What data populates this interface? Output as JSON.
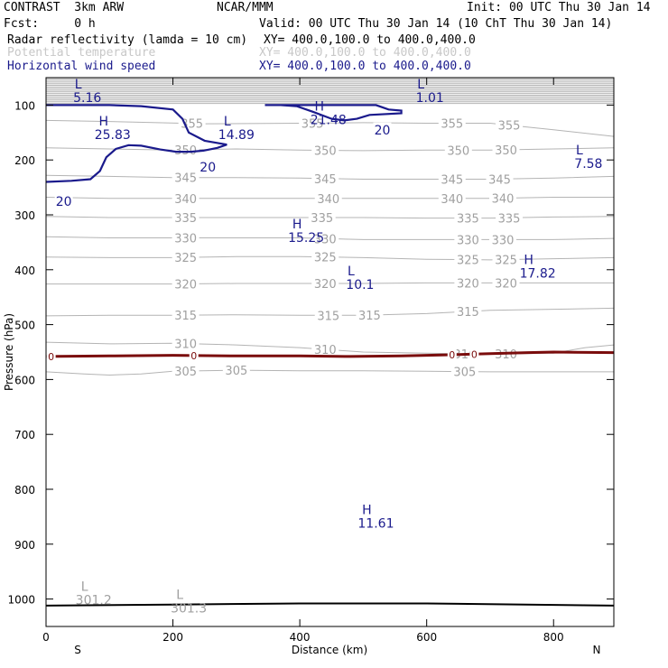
{
  "header": {
    "left1": "CONTRAST  3km ARW",
    "center1": "NCAR/MMM",
    "right1": "Init: 00 UTC Thu 30 Jan 14",
    "left2": "Fcst:     0 h",
    "right2": "Valid: 00 UTC Thu 30 Jan 14 (10 ChT Thu 30 Jan 14)",
    "fields": [
      {
        "name": "Radar reflectivity (lamda = 10 cm)",
        "xy": "XY= 400.0,100.0 to 400.0,400.0",
        "color": "#000000"
      },
      {
        "name": "Potential temperature",
        "xy": "XY= 400.0,100.0 to 400.0,400.0",
        "color": "#c8c8c8"
      },
      {
        "name": "Horizontal wind speed",
        "xy": "XY= 400.0,100.0 to 400.0,400.0",
        "color": "#1a1a8c"
      }
    ]
  },
  "chart_data": {
    "type": "line",
    "xlabel": "Distance (km)",
    "ylabel": "Pressure (hPa)",
    "xlim": [
      0,
      895
    ],
    "ylim": [
      1050,
      50
    ],
    "xticks": [
      0,
      200,
      400,
      600,
      800
    ],
    "yticks": [
      100,
      200,
      300,
      400,
      500,
      600,
      700,
      800,
      900,
      1000
    ],
    "end_labels": {
      "left": "S",
      "right": "N"
    },
    "colors": {
      "theta": "#b4b4b4",
      "theta_label": "#a0a0a0",
      "wind": "#1a1a8c",
      "refl": "#7a0c0c",
      "ground": "#000000"
    },
    "theta_contours": [
      {
        "level": 355,
        "points": [
          [
            0,
            128
          ],
          [
            100,
            130
          ],
          [
            250,
            134
          ],
          [
            400,
            133
          ],
          [
            500,
            132
          ],
          [
            600,
            133
          ],
          [
            700,
            133
          ],
          [
            800,
            145
          ],
          [
            895,
            157
          ]
        ],
        "label_x": [
          230,
          420,
          640,
          730
        ]
      },
      {
        "level": 350,
        "points": [
          [
            0,
            178
          ],
          [
            100,
            180
          ],
          [
            200,
            182
          ],
          [
            300,
            180
          ],
          [
            400,
            182
          ],
          [
            500,
            183
          ],
          [
            600,
            182
          ],
          [
            700,
            182
          ],
          [
            800,
            180
          ],
          [
            895,
            178
          ]
        ],
        "label_x": [
          220,
          440,
          650,
          725
        ]
      },
      {
        "level": 345,
        "points": [
          [
            0,
            228
          ],
          [
            100,
            230
          ],
          [
            200,
            232
          ],
          [
            300,
            232
          ],
          [
            400,
            233
          ],
          [
            500,
            235
          ],
          [
            600,
            235
          ],
          [
            700,
            235
          ],
          [
            800,
            233
          ],
          [
            895,
            230
          ]
        ],
        "label_x": [
          220,
          440,
          640,
          715
        ]
      },
      {
        "level": 340,
        "points": [
          [
            0,
            268
          ],
          [
            100,
            270
          ],
          [
            200,
            270
          ],
          [
            300,
            270
          ],
          [
            400,
            270
          ],
          [
            500,
            270
          ],
          [
            600,
            270
          ],
          [
            700,
            270
          ],
          [
            800,
            268
          ],
          [
            895,
            268
          ]
        ],
        "label_x": [
          220,
          445,
          640,
          720
        ]
      },
      {
        "level": 335,
        "points": [
          [
            0,
            303
          ],
          [
            100,
            305
          ],
          [
            200,
            305
          ],
          [
            300,
            305
          ],
          [
            400,
            305
          ],
          [
            500,
            305
          ],
          [
            600,
            306
          ],
          [
            700,
            306
          ],
          [
            800,
            304
          ],
          [
            895,
            303
          ]
        ],
        "label_x": [
          220,
          435,
          665,
          730
        ]
      },
      {
        "level": 330,
        "points": [
          [
            0,
            340
          ],
          [
            100,
            342
          ],
          [
            200,
            342
          ],
          [
            300,
            342
          ],
          [
            400,
            342
          ],
          [
            500,
            345
          ],
          [
            600,
            345
          ],
          [
            700,
            345
          ],
          [
            800,
            345
          ],
          [
            895,
            343
          ]
        ],
        "label_x": [
          220,
          440,
          665,
          720
        ]
      },
      {
        "level": 325,
        "points": [
          [
            0,
            377
          ],
          [
            100,
            378
          ],
          [
            200,
            378
          ],
          [
            300,
            376
          ],
          [
            400,
            376
          ],
          [
            500,
            378
          ],
          [
            600,
            381
          ],
          [
            700,
            382
          ],
          [
            800,
            380
          ],
          [
            895,
            378
          ]
        ],
        "label_x": [
          220,
          440,
          665,
          725
        ]
      },
      {
        "level": 320,
        "points": [
          [
            0,
            426
          ],
          [
            100,
            426
          ],
          [
            200,
            426
          ],
          [
            300,
            425
          ],
          [
            400,
            425
          ],
          [
            500,
            425
          ],
          [
            600,
            424
          ],
          [
            700,
            424
          ],
          [
            800,
            424
          ],
          [
            895,
            424
          ]
        ],
        "label_x": [
          220,
          440,
          665,
          725
        ]
      },
      {
        "level": 315,
        "points": [
          [
            0,
            484
          ],
          [
            100,
            483
          ],
          [
            200,
            483
          ],
          [
            300,
            482
          ],
          [
            400,
            483
          ],
          [
            500,
            483
          ],
          [
            600,
            480
          ],
          [
            700,
            474
          ],
          [
            800,
            472
          ],
          [
            895,
            470
          ]
        ],
        "label_x": [
          220,
          445,
          510,
          665
        ]
      },
      {
        "level": 310,
        "points": [
          [
            0,
            532
          ],
          [
            100,
            535
          ],
          [
            200,
            534
          ],
          [
            300,
            537
          ],
          [
            400,
            542
          ],
          [
            500,
            550
          ],
          [
            600,
            552
          ],
          [
            700,
            554
          ],
          [
            800,
            552
          ],
          [
            850,
            542
          ],
          [
            895,
            537
          ]
        ],
        "label_x": [
          220,
          440,
          660,
          725
        ]
      },
      {
        "level": 305,
        "points": [
          [
            0,
            586
          ],
          [
            60,
            590
          ],
          [
            100,
            592
          ],
          [
            150,
            590
          ],
          [
            200,
            585
          ],
          [
            300,
            583
          ],
          [
            400,
            584
          ],
          [
            500,
            584
          ],
          [
            600,
            585
          ],
          [
            700,
            586
          ],
          [
            800,
            586
          ],
          [
            895,
            586
          ]
        ],
        "label_x": [
          220,
          300,
          660
        ]
      }
    ],
    "theta_minmax": [
      {
        "kind": "L",
        "x": 75,
        "p": 985,
        "value": "301.2"
      },
      {
        "kind": "L",
        "x": 225,
        "p": 1000,
        "value": "301.3"
      }
    ],
    "wind_contours": [
      {
        "level": 20,
        "points": [
          [
            0,
            100
          ],
          [
            40,
            100
          ],
          [
            100,
            100
          ],
          [
            150,
            102
          ],
          [
            200,
            108
          ],
          [
            215,
            125
          ],
          [
            225,
            150
          ],
          [
            250,
            165
          ],
          [
            285,
            172
          ],
          [
            270,
            178
          ],
          [
            248,
            183
          ],
          [
            228,
            185
          ],
          [
            205,
            185
          ],
          [
            180,
            181
          ],
          [
            150,
            174
          ],
          [
            130,
            173
          ],
          [
            110,
            180
          ],
          [
            95,
            195
          ],
          [
            85,
            220
          ],
          [
            70,
            235
          ],
          [
            40,
            238
          ],
          [
            0,
            240
          ]
        ],
        "labels": [
          {
            "x": 255,
            "p": 213
          },
          {
            "x": 28,
            "p": 275
          }
        ]
      },
      {
        "level": 20,
        "points": [
          [
            345,
            100
          ],
          [
            370,
            100
          ],
          [
            395,
            102
          ],
          [
            420,
            112
          ],
          [
            450,
            125
          ],
          [
            470,
            128
          ],
          [
            490,
            125
          ],
          [
            510,
            118
          ],
          [
            560,
            115
          ],
          [
            560,
            110
          ],
          [
            540,
            108
          ],
          [
            520,
            100
          ],
          [
            500,
            100
          ],
          [
            460,
            100
          ],
          [
            420,
            100
          ],
          [
            395,
            100
          ],
          [
            370,
            100
          ],
          [
            345,
            100
          ]
        ],
        "labels": [
          {
            "x": 530,
            "p": 145
          }
        ]
      }
    ],
    "wind_minmax": [
      {
        "kind": "L",
        "x": 65,
        "p": 70,
        "value": "5.16"
      },
      {
        "kind": "H",
        "x": 105,
        "p": 137,
        "value": "25.83"
      },
      {
        "kind": "L",
        "x": 300,
        "p": 137,
        "value": "14.89"
      },
      {
        "kind": "H",
        "x": 445,
        "p": 110,
        "value": "21.48"
      },
      {
        "kind": "L",
        "x": 605,
        "p": 70,
        "value": "1.01"
      },
      {
        "kind": "L",
        "x": 855,
        "p": 190,
        "value": "7.58"
      },
      {
        "kind": "H",
        "x": 410,
        "p": 325,
        "value": "15.25"
      },
      {
        "kind": "L",
        "x": 495,
        "p": 410,
        "value": "10.1"
      },
      {
        "kind": "H",
        "x": 775,
        "p": 390,
        "value": "17.82"
      },
      {
        "kind": "H",
        "x": 520,
        "p": 845,
        "value": "11.61"
      }
    ],
    "refl_contour": {
      "level": 0,
      "points": [
        [
          0,
          558
        ],
        [
          100,
          557
        ],
        [
          200,
          556
        ],
        [
          300,
          557
        ],
        [
          400,
          557
        ],
        [
          480,
          558
        ],
        [
          560,
          557
        ],
        [
          640,
          555
        ],
        [
          700,
          553
        ],
        [
          760,
          551
        ],
        [
          800,
          550
        ],
        [
          895,
          551
        ]
      ],
      "label_x": [
        8,
        233,
        640,
        675
      ]
    },
    "ground": {
      "points": [
        [
          0,
          1012
        ],
        [
          200,
          1010
        ],
        [
          400,
          1008
        ],
        [
          600,
          1008
        ],
        [
          895,
          1012
        ]
      ]
    }
  }
}
